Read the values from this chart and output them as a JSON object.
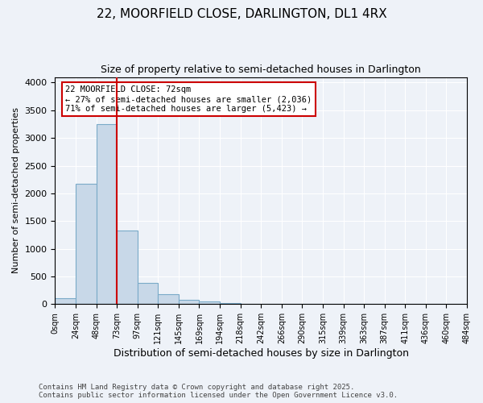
{
  "title1": "22, MOORFIELD CLOSE, DARLINGTON, DL1 4RX",
  "title2": "Size of property relative to semi-detached houses in Darlington",
  "xlabel": "Distribution of semi-detached houses by size in Darlington",
  "ylabel": "Number of semi-detached properties",
  "bins": [
    "0sqm",
    "24sqm",
    "48sqm",
    "73sqm",
    "97sqm",
    "121sqm",
    "145sqm",
    "169sqm",
    "194sqm",
    "218sqm",
    "242sqm",
    "266sqm",
    "290sqm",
    "315sqm",
    "339sqm",
    "363sqm",
    "387sqm",
    "411sqm",
    "436sqm",
    "460sqm",
    "484sqm"
  ],
  "bar_heights": [
    100,
    2175,
    3250,
    1330,
    390,
    175,
    75,
    50,
    15,
    5,
    2,
    1,
    0,
    0,
    0,
    0,
    0,
    0,
    0,
    0
  ],
  "bar_color": "#c8d8e8",
  "bar_edge_color": "#7aaac8",
  "property_line_x": 2.0,
  "property_size": "72sqm",
  "pct_smaller": 27,
  "count_smaller": 2036,
  "pct_larger": 71,
  "count_larger": 5423,
  "annotation_box_color": "#ffffff",
  "annotation_box_edge": "#cc0000",
  "annotation_text_color": "#000000",
  "property_line_color": "#cc0000",
  "background_color": "#eef2f8",
  "ylim": [
    0,
    4100
  ],
  "footer_text": "Contains HM Land Registry data © Crown copyright and database right 2025.\nContains public sector information licensed under the Open Government Licence v3.0.",
  "grid_color": "#ffffff"
}
